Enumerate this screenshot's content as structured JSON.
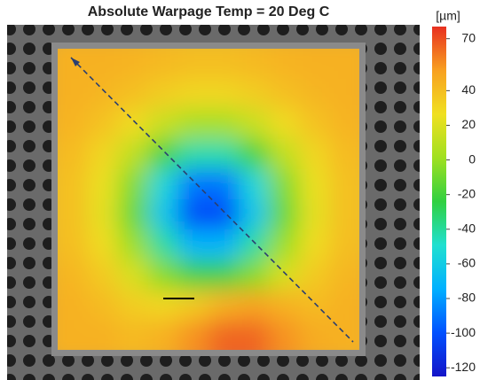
{
  "chart_data": {
    "type": "heatmap",
    "title": "Absolute Warpage   Temp =  20 Deg C",
    "colorbar_label": "[µm]",
    "zlim": [
      -125,
      77
    ],
    "zticks": [
      70,
      40,
      20,
      0,
      -20,
      -40,
      -60,
      -80,
      -100,
      -120
    ],
    "colorscale": [
      "#1414c8",
      "#0050ff",
      "#00b0ff",
      "#20e0d0",
      "#30d040",
      "#a0e020",
      "#f0e020",
      "#f8a020",
      "#e83020"
    ],
    "z": [
      [
        45,
        45,
        44,
        42,
        40,
        40,
        42,
        44,
        45,
        45
      ],
      [
        45,
        43,
        39,
        34,
        30,
        30,
        34,
        39,
        43,
        45
      ],
      [
        44,
        38,
        28,
        14,
        3,
        3,
        14,
        28,
        38,
        44
      ],
      [
        41,
        30,
        11,
        -20,
        -43,
        -43,
        -20,
        11,
        30,
        41
      ],
      [
        39,
        25,
        -6,
        -54,
        -90,
        -90,
        -54,
        -6,
        25,
        39
      ],
      [
        39,
        23,
        -12,
        -63,
        -103,
        -103,
        -63,
        -12,
        23,
        39
      ],
      [
        40,
        28,
        0,
        -41,
        -72,
        -72,
        -41,
        0,
        28,
        40
      ],
      [
        43,
        35,
        19,
        -5,
        -23,
        -23,
        -5,
        19,
        35,
        43
      ],
      [
        45,
        41,
        34,
        30,
        35,
        45,
        50,
        45,
        41,
        45
      ],
      [
        45,
        45,
        42,
        45,
        55,
        65,
        65,
        55,
        47,
        45
      ]
    ]
  }
}
